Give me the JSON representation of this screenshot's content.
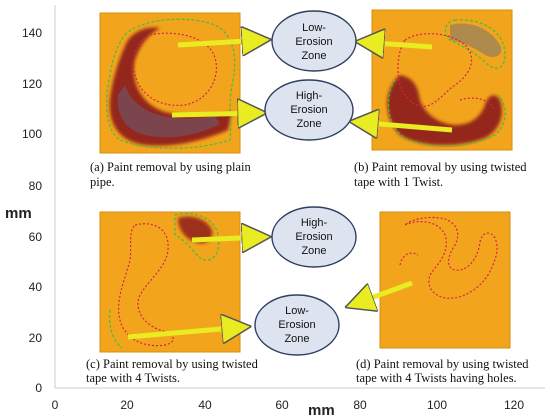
{
  "axes": {
    "x_label": "mm",
    "y_label": "mm",
    "x_ticks": [
      "0",
      "20",
      "40",
      "60",
      "80",
      "100",
      "120"
    ],
    "y_ticks": [
      "0",
      "20",
      "40",
      "60",
      "80",
      "100",
      "120",
      "140"
    ],
    "x_range": [
      0,
      120
    ],
    "y_range": [
      0,
      148
    ]
  },
  "panels": {
    "a": {
      "caption_line1": "(a) Paint removal by using plain",
      "caption_line2": "pipe."
    },
    "b": {
      "caption_line1": "(b) Paint removal by using twisted",
      "caption_line2": "tape with 1 Twist."
    },
    "c": {
      "caption_line1": "(c) Paint removal by using twisted",
      "caption_line2": "tape with 4 Twists."
    },
    "d": {
      "caption_line1": "(d) Paint removal by using twisted",
      "caption_line2": "tape with 4 Twists having holes."
    }
  },
  "zones": {
    "top_low": {
      "line1": "Low-",
      "line2": "Erosion",
      "line3": "Zone"
    },
    "top_high": {
      "line1": "High-",
      "line2": "Erosion",
      "line3": "Zone"
    },
    "bottom_high": {
      "line1": "High-",
      "line2": "Erosion",
      "line3": "Zone"
    },
    "bottom_low": {
      "line1": "Low-",
      "line2": "Erosion",
      "line3": "Zone"
    }
  },
  "colors": {
    "plate": "#f2a51c",
    "plate_edge": "#d88d10",
    "erosion": "#8e1b1b",
    "outline_green": "#3fbf3f",
    "outline_red": "#d8204a",
    "arrow": "#e8ec20",
    "bubble_fill": "#dde4f0",
    "bubble_stroke": "#2e3f5f"
  }
}
